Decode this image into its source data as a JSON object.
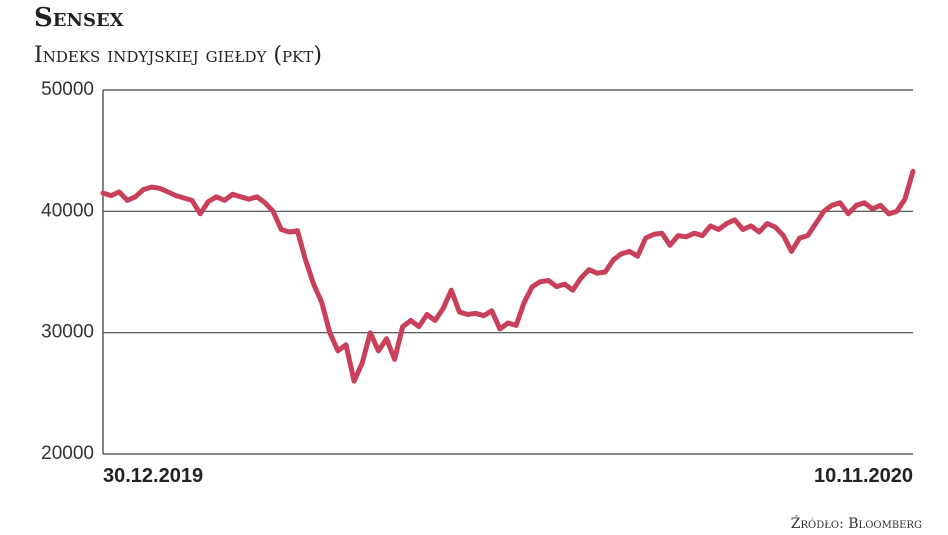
{
  "chart_data": {
    "type": "line",
    "title": "Sensex",
    "subtitle": "Indeks indyjskiej giełdy (pkt)",
    "source": "Źródło: Bloomberg",
    "color": "#c8405a",
    "grid": true,
    "ylim": [
      20000,
      50000
    ],
    "yticks": [
      20000,
      30000,
      40000,
      50000
    ],
    "categories": [
      "30.12.2019",
      null,
      null,
      null,
      null,
      null,
      null,
      null,
      null,
      null,
      null,
      null,
      null,
      null,
      null,
      null,
      null,
      null,
      null,
      null,
      null,
      null,
      null,
      null,
      null,
      null,
      null,
      null,
      null,
      null,
      null,
      null,
      null,
      null,
      null,
      null,
      null,
      null,
      null,
      null,
      null,
      null,
      null,
      null,
      null,
      null,
      null,
      null,
      null,
      null,
      null,
      null,
      null,
      null,
      null,
      null,
      null,
      null,
      null,
      null,
      null,
      null,
      null,
      null,
      null,
      null,
      null,
      null,
      null,
      null,
      null,
      null,
      null,
      null,
      null,
      null,
      null,
      null,
      null,
      null,
      null,
      null,
      null,
      null,
      null,
      null,
      null,
      null,
      null,
      null,
      null,
      null,
      null,
      null,
      null,
      null,
      null,
      null,
      null,
      null,
      "10.11.2020"
    ],
    "values": [
      41500,
      41300,
      41600,
      40900,
      41200,
      41800,
      42000,
      41900,
      41600,
      41300,
      41100,
      40900,
      39800,
      40800,
      41200,
      40900,
      41400,
      41200,
      41000,
      41200,
      40700,
      40000,
      38500,
      38300,
      38400,
      36000,
      34000,
      32500,
      30000,
      28500,
      29000,
      26000,
      27500,
      30000,
      28500,
      29500,
      27800,
      30500,
      31000,
      30500,
      31500,
      31000,
      32000,
      33500,
      31700,
      31500,
      31600,
      31400,
      31800,
      30300,
      30800,
      30600,
      32500,
      33800,
      34200,
      34300,
      33800,
      34000,
      33500,
      34500,
      35200,
      34900,
      35000,
      36000,
      36500,
      36700,
      36300,
      37800,
      38100,
      38200,
      37200,
      38000,
      37900,
      38200,
      38000,
      38800,
      38500,
      39000,
      39300,
      38500,
      38800,
      38300,
      39000,
      38700,
      38000,
      36700,
      37800,
      38000,
      39000,
      40000,
      40500,
      40700,
      39800,
      40500,
      40700,
      40200,
      40500,
      39800,
      40000,
      41000,
      43300
    ]
  }
}
